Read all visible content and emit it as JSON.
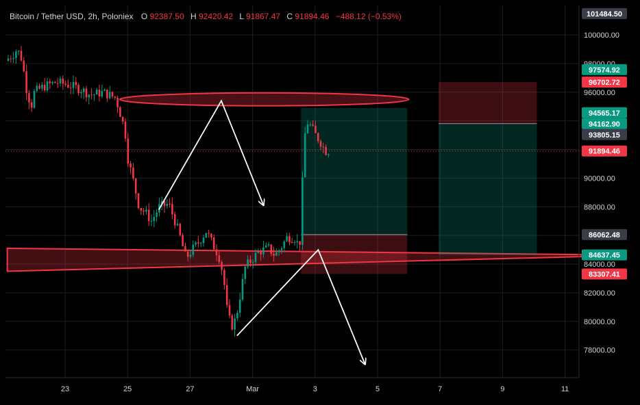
{
  "colors": {
    "background": "#000000",
    "grid": "#1c1e26",
    "axis_text": "#d1d4dc",
    "up": "#089981",
    "down": "#f23645",
    "annotation": "#ffffff",
    "tag_green": "#089981",
    "tag_red": "#f23645",
    "tag_gray": "#3a3d47",
    "legend_label": "#d1d4dc",
    "legend_value": "#f23645"
  },
  "legend": {
    "symbol": "Bitcoin / Tether USD, 2h, Poloniex",
    "open_label": "O",
    "open": "92387.50",
    "high_label": "H",
    "high": "92420.42",
    "low_label": "L",
    "low": "91867.47",
    "close_label": "C",
    "close": "91894.46",
    "change": "−488.12 (−0.53%)"
  },
  "price_tags": [
    {
      "label": "101484.50",
      "value": 101484.5,
      "color": "gray"
    },
    {
      "label": "97574.92",
      "value": 97574.92,
      "color": "green"
    },
    {
      "label": "96702.72",
      "value": 96702.72,
      "color": "red"
    },
    {
      "label": "94565.17",
      "value": 94565.17,
      "color": "green"
    },
    {
      "label": "94162.90",
      "value": 94162.9,
      "color": "green"
    },
    {
      "label": "93805.15",
      "value": 93805.15,
      "color": "gray"
    },
    {
      "label": "91894.46",
      "value": 91894.46,
      "color": "red"
    },
    {
      "label": "86062.48",
      "value": 86062.48,
      "color": "gray"
    },
    {
      "label": "84637.45",
      "value": 84637.45,
      "color": "green"
    },
    {
      "label": "83307.41",
      "value": 83307.41,
      "color": "red"
    }
  ],
  "chart_data": {
    "type": "candlestick",
    "title": "Bitcoin / Tether USD, 2h, Poloniex",
    "ylim": [
      76500,
      102500
    ],
    "y_ticks": [
      "100000.00",
      "98000.00",
      "96000.00",
      "90000.00",
      "88000.00",
      "84000.00",
      "82000.00",
      "80000.00",
      "78000.00"
    ],
    "y_tick_values": [
      100000,
      98000,
      96000,
      90000,
      88000,
      84000,
      82000,
      80000,
      78000
    ],
    "x_ticks": [
      "23",
      "25",
      "27",
      "Mar",
      "3",
      "5",
      "7",
      "9",
      "11"
    ],
    "x_tick_days": [
      0,
      2,
      4,
      6,
      8,
      10,
      12,
      14,
      16
    ],
    "xlim_days": [
      -1.85,
      17.05
    ],
    "grid": true,
    "close_line_value": 91894.46,
    "anchors": [
      {
        "d": -1.82,
        "p": 98200
      },
      {
        "d": -1.6,
        "p": 98600
      },
      {
        "d": -1.45,
        "p": 99000
      },
      {
        "d": -1.3,
        "p": 98300
      },
      {
        "d": -1.15,
        "p": 96200
      },
      {
        "d": -1.0,
        "p": 95000
      },
      {
        "d": -0.9,
        "p": 96000
      },
      {
        "d": -0.6,
        "p": 96400
      },
      {
        "d": -0.2,
        "p": 96700
      },
      {
        "d": 0.2,
        "p": 96500
      },
      {
        "d": 0.6,
        "p": 96200
      },
      {
        "d": 0.9,
        "p": 95800
      },
      {
        "d": 1.3,
        "p": 96000
      },
      {
        "d": 1.7,
        "p": 95600
      },
      {
        "d": 1.85,
        "p": 94500
      },
      {
        "d": 2.0,
        "p": 93300
      },
      {
        "d": 2.1,
        "p": 91300
      },
      {
        "d": 2.3,
        "p": 89500
      },
      {
        "d": 2.45,
        "p": 88000
      },
      {
        "d": 2.65,
        "p": 87600
      },
      {
        "d": 2.85,
        "p": 87000
      },
      {
        "d": 3.1,
        "p": 88000
      },
      {
        "d": 3.4,
        "p": 88200
      },
      {
        "d": 3.6,
        "p": 87000
      },
      {
        "d": 3.75,
        "p": 86000
      },
      {
        "d": 3.95,
        "p": 84400
      },
      {
        "d": 4.15,
        "p": 85000
      },
      {
        "d": 4.35,
        "p": 85500
      },
      {
        "d": 4.6,
        "p": 86300
      },
      {
        "d": 4.85,
        "p": 85200
      },
      {
        "d": 5.0,
        "p": 84600
      },
      {
        "d": 5.15,
        "p": 83200
      },
      {
        "d": 5.25,
        "p": 81000
      },
      {
        "d": 5.4,
        "p": 79600
      },
      {
        "d": 5.55,
        "p": 80200
      },
      {
        "d": 5.7,
        "p": 82000
      },
      {
        "d": 5.85,
        "p": 83800
      },
      {
        "d": 6.05,
        "p": 84300
      },
      {
        "d": 6.3,
        "p": 84900
      },
      {
        "d": 6.6,
        "p": 85100
      },
      {
        "d": 6.8,
        "p": 84600
      },
      {
        "d": 7.0,
        "p": 85200
      },
      {
        "d": 7.2,
        "p": 85900
      },
      {
        "d": 7.45,
        "p": 85800
      },
      {
        "d": 7.55,
        "p": 85300
      },
      {
        "d": 7.6,
        "p": 85600
      },
      {
        "d": 7.65,
        "p": 88000
      },
      {
        "d": 7.72,
        "p": 92000
      },
      {
        "d": 7.8,
        "p": 94000
      },
      {
        "d": 7.95,
        "p": 93600
      },
      {
        "d": 8.1,
        "p": 93000
      },
      {
        "d": 8.3,
        "p": 92400
      },
      {
        "d": 8.4,
        "p": 91900
      }
    ],
    "bands": [
      {
        "name": "upper",
        "band_kind": "ellipse",
        "x_day": 1.75,
        "x_day_end": 11.0,
        "center_value": 95500,
        "half_height_value": 450
      },
      {
        "name": "lower",
        "band_kind": "quad",
        "points": [
          [
            -1.85,
            85100
          ],
          [
            17.05,
            84650
          ],
          [
            17.05,
            84550
          ],
          [
            -1.85,
            83500
          ]
        ]
      }
    ],
    "positions": [
      {
        "name": "long-position",
        "x_start": 7.55,
        "x_end": 10.95,
        "entry": 86062.48,
        "target": 94900,
        "stop": 83307.41
      },
      {
        "name": "short-position",
        "x_start": 11.95,
        "x_end": 15.1,
        "entry": 93805.15,
        "target": 84637.45,
        "stop": 96702.72
      }
    ],
    "zigzags": [
      {
        "name": "upper-zigzag",
        "points": [
          [
            3.0,
            87800
          ],
          [
            5.0,
            95400
          ],
          [
            6.35,
            88100
          ]
        ]
      },
      {
        "name": "lower-zigzag",
        "points": [
          [
            5.5,
            79000
          ],
          [
            8.1,
            85000
          ],
          [
            9.6,
            77000
          ]
        ]
      }
    ]
  }
}
